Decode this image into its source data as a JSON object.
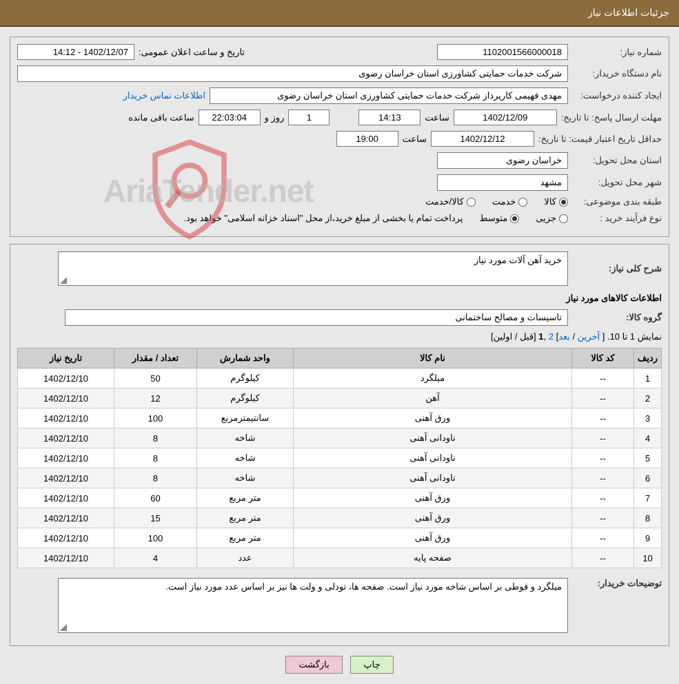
{
  "title_bar": "جزئیات اطلاعات نیاز",
  "fields": {
    "need_no_label": "شماره نیاز:",
    "need_no": "1102001566000018",
    "announce_label": "تاریخ و ساعت اعلان عمومی:",
    "announce_value": "1402/12/07 - 14:12",
    "buyer_org_label": "نام دستگاه خریدار:",
    "buyer_org": "شرکت خدمات حمایتی کشاورزی استان خراسان رضوی",
    "requester_label": "ایجاد کننده درخواست:",
    "requester": "مهدی فهیمی کارپرداز شرکت خدمات حمایتی کشاورزی استان خراسان رضوی",
    "contact_link": "اطلاعات تماس خریدار",
    "deadline_label": "مهلت ارسال پاسخ: تا تاریخ:",
    "deadline_date": "1402/12/09",
    "time_word": "ساعت",
    "deadline_time": "14:13",
    "days_remaining": "1",
    "days_word": "روز و",
    "countdown": "22:03:04",
    "remaining_word": "ساعت باقی مانده",
    "min_valid_label": "حداقل تاریخ اعتبار قیمت: تا تاریخ:",
    "min_valid_date": "1402/12/12",
    "min_valid_time": "19:00",
    "province_label": "استان محل تحویل:",
    "province": "خراسان رضوی",
    "city_label": "شهر محل تحویل:",
    "city": "مشهد",
    "class_label": "طبقه بندی موضوعی:",
    "class_goods": "کالا",
    "class_service": "خدمت",
    "class_both": "کالا/خدمت",
    "process_label": "نوع فرآیند خرید :",
    "process_minor": "جزیی",
    "process_medium": "متوسط",
    "process_note": "پرداخت تمام یا بخشی از مبلغ خرید،از محل \"اسناد خزانه اسلامی\" خواهد بود.",
    "general_desc_label": "شرح کلی نیاز:",
    "general_desc": "خرید آهن آلات مورد نیاز",
    "goods_info_title": "اطلاعات کالاهای مورد نیاز",
    "goods_group_label": "گروه کالا:",
    "goods_group": "تاسیسات و مصالح ساختمانی",
    "buyer_notes_label": "توضیحات خریدار:",
    "buyer_notes": "میلگرد و قوطی بر اساس شاخه مورد نیاز است. صفحه ها، تودلی و ولت ها  نیز بر اساس عدد مورد نیاز است."
  },
  "pager": {
    "prefix": "نمایش 1 تا 10. [ ",
    "last": "آخرین",
    "sep1": " / ",
    "next": "بعد",
    "sep2": "] ",
    "page2": "2",
    "sep3": " ,",
    "page1": "1",
    "suffix": " [قبل / اولین]"
  },
  "table": {
    "headers": [
      "ردیف",
      "کد کالا",
      "نام کالا",
      "واحد شمارش",
      "تعداد / مقدار",
      "تاریخ نیاز"
    ],
    "col_widths": [
      "40px",
      "90px",
      "auto",
      "140px",
      "120px",
      "140px"
    ],
    "rows": [
      [
        "1",
        "--",
        "میلگرد",
        "کیلوگرم",
        "50",
        "1402/12/10"
      ],
      [
        "2",
        "--",
        "آهن",
        "کیلوگرم",
        "12",
        "1402/12/10"
      ],
      [
        "3",
        "--",
        "ورق آهنی",
        "سانتیمترمربع",
        "100",
        "1402/12/10"
      ],
      [
        "4",
        "--",
        "ناودانی آهنی",
        "شاخه",
        "8",
        "1402/12/10"
      ],
      [
        "5",
        "--",
        "ناودانی آهنی",
        "شاخه",
        "8",
        "1402/12/10"
      ],
      [
        "6",
        "--",
        "ناودانی آهنی",
        "شاخه",
        "8",
        "1402/12/10"
      ],
      [
        "7",
        "--",
        "ورق آهنی",
        "متر مربع",
        "60",
        "1402/12/10"
      ],
      [
        "8",
        "--",
        "ورق آهنی",
        "متر مربع",
        "15",
        "1402/12/10"
      ],
      [
        "9",
        "--",
        "ورق آهنی",
        "متر مربع",
        "100",
        "1402/12/10"
      ],
      [
        "10",
        "--",
        "صفحه پایه",
        "عدد",
        "4",
        "1402/12/10"
      ]
    ]
  },
  "buttons": {
    "print": "چاپ",
    "back": "بازگشت"
  },
  "watermark": "AriaTender.net",
  "colors": {
    "title_bg": "#8a6d3b",
    "page_bg": "#e8e8e8",
    "th_bg": "#d0d0d0",
    "btn_green": "#d8f0c8",
    "btn_pink": "#f0c8d8",
    "link": "#0066cc",
    "shield_red": "#d93a3a"
  }
}
